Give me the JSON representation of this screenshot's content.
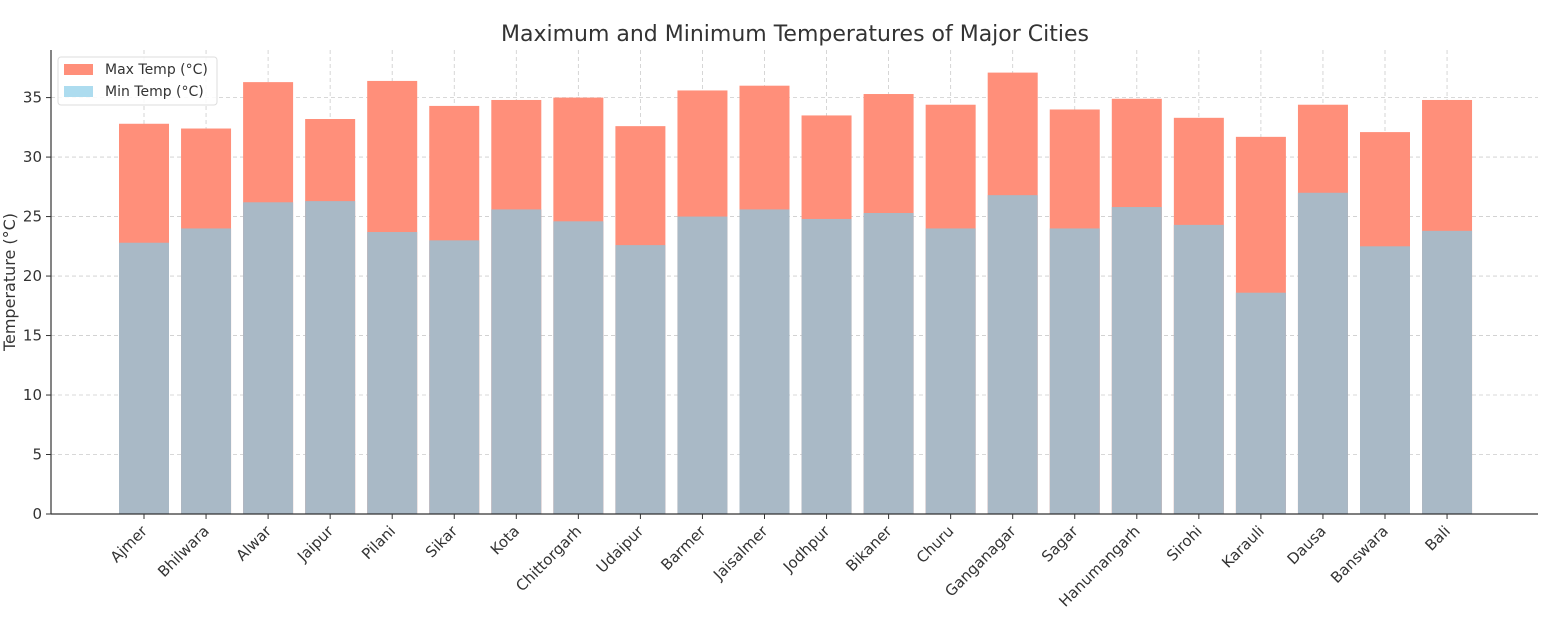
{
  "chart_data": {
    "type": "bar",
    "title": "Maximum and Minimum Temperatures of Major Cities",
    "xlabel": "",
    "ylabel": "Temperature (°C)",
    "ylim": [
      0,
      39
    ],
    "yticks": [
      0,
      5,
      10,
      15,
      20,
      25,
      30,
      35
    ],
    "grid": true,
    "legend_position": "top-left",
    "categories": [
      "Ajmer",
      "Bhilwara",
      "Alwar",
      "Jaipur",
      "Pilani",
      "Sikar",
      "Kota",
      "Chittorgarh",
      "Udaipur",
      "Barmer",
      "Jaisalmer",
      "Jodhpur",
      "Bikaner",
      "Churu",
      "Ganganagar",
      "Sagar",
      "Hanumangarh",
      "Sirohi",
      "Karauli",
      "Dausa",
      "Banswara",
      "Bali"
    ],
    "series": [
      {
        "name": "Max Temp (°C)",
        "color": "#ff8f7a",
        "values": [
          32.8,
          32.4,
          36.3,
          33.2,
          36.4,
          34.3,
          34.8,
          35.0,
          32.6,
          35.6,
          36.0,
          33.5,
          35.3,
          34.4,
          37.1,
          34.0,
          34.9,
          33.3,
          31.7,
          34.4,
          32.1,
          34.8
        ]
      },
      {
        "name": "Min Temp (°C)",
        "color": "#addcef",
        "overlap_color": "#a9b9c6",
        "values": [
          22.8,
          24.0,
          26.2,
          26.3,
          23.7,
          23.0,
          25.6,
          24.6,
          22.6,
          25.0,
          25.6,
          24.8,
          25.3,
          24.0,
          26.8,
          24.0,
          25.8,
          24.3,
          18.6,
          27.0,
          22.5,
          23.8
        ]
      }
    ]
  }
}
